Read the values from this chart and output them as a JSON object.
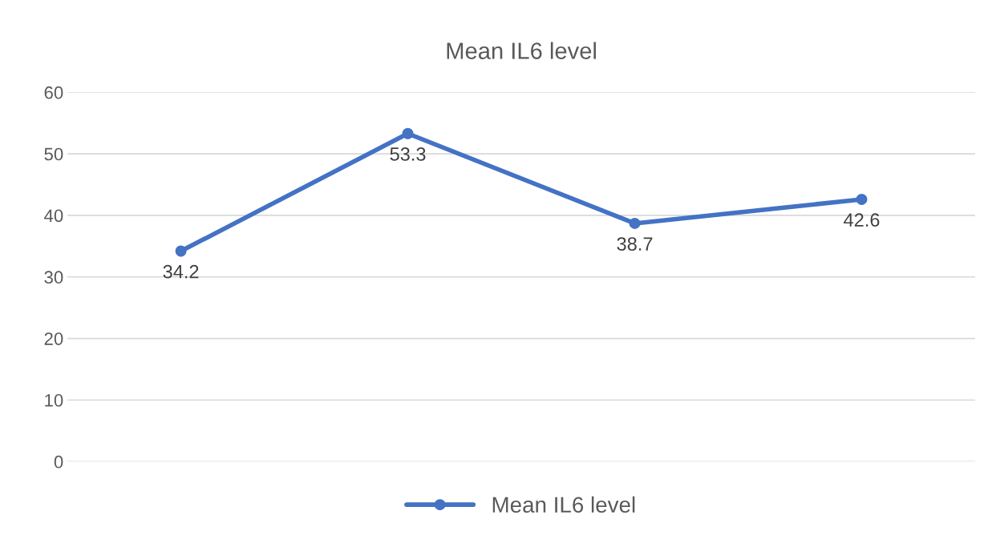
{
  "chart_data": {
    "type": "line",
    "title": "Mean IL6 level",
    "categories": [
      null,
      null,
      null,
      null
    ],
    "series": [
      {
        "name": "Mean IL6 level",
        "color": "#4472c4",
        "values": [
          34.2,
          53.3,
          38.7,
          42.6
        ]
      }
    ],
    "ylim": [
      0,
      60
    ],
    "yticks": [
      0,
      10,
      20,
      30,
      40,
      50,
      60
    ],
    "grid": "y",
    "legend": "bottom",
    "marker": "circle",
    "line_style": "solid",
    "data_labels": true
  }
}
